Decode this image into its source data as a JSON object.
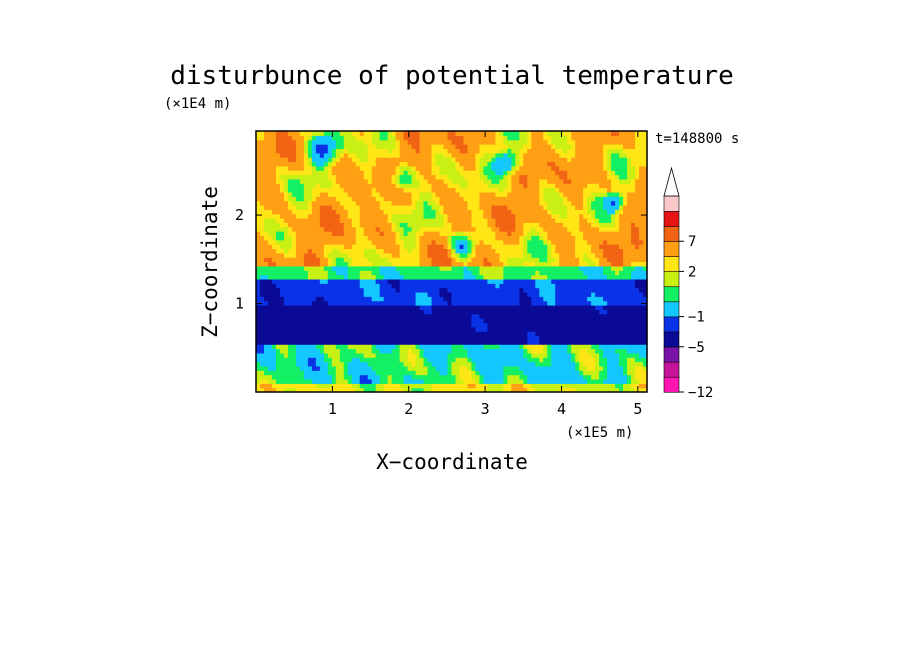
{
  "chart_data": {
    "type": "heatmap",
    "title": "disturbunce of potential temperature",
    "time_label": "t=148800 s",
    "xlabel": "X−coordinate",
    "ylabel": "Z−coordinate",
    "x_scale_label": "(×1E5 m)",
    "y_scale_label": "(×1E4 m)",
    "xlim": [
      0,
      5.12
    ],
    "ylim": [
      0,
      2.95
    ],
    "x_ticks": [
      1,
      2,
      3,
      4,
      5
    ],
    "y_ticks": [
      1,
      2
    ],
    "x_tick_labels": [
      "1",
      "2",
      "3",
      "4",
      "5"
    ],
    "y_tick_labels": [
      "1",
      "2"
    ],
    "colorbar": {
      "extend": "max",
      "levels": [
        -12,
        -10,
        -8,
        -5,
        -3,
        -1,
        0,
        1,
        2,
        4,
        7,
        9
      ],
      "colors": [
        "#ff14b4",
        "#c8149b",
        "#7814aa",
        "#0a0a96",
        "#0a32e6",
        "#14c8ff",
        "#14f064",
        "#c8f014",
        "#ffe614",
        "#ffa014",
        "#f06414",
        "#e61414",
        "#fac8c8"
      ],
      "labels": [
        {
          "value": -12,
          "text": "−12"
        },
        {
          "value": -5,
          "text": "−5"
        },
        {
          "value": -1,
          "text": "−1"
        },
        {
          "value": 2,
          "text": "2"
        },
        {
          "value": 7,
          "text": "7"
        }
      ]
    },
    "field": {
      "x_range": [
        0,
        5.12
      ],
      "z_range": [
        0,
        2.95
      ],
      "layers": [
        {
          "z": [
            0,
            0.12
          ],
          "level": 1
        },
        {
          "z": [
            0.12,
            0.55
          ],
          "level": 0
        },
        {
          "z": [
            0.55,
            0.95
          ],
          "level": 0.5
        },
        {
          "z": [
            0.95,
            1.28
          ],
          "level": -0.5
        },
        {
          "z": [
            1.28,
            1.45
          ],
          "level": 1.5
        },
        {
          "z": [
            1.45,
            1.9
          ],
          "level": 3
        },
        {
          "z": [
            1.9,
            2.95
          ],
          "level": 3
        }
      ]
    }
  },
  "colors": {
    "background": "#ffffff",
    "axis": "#000000"
  }
}
